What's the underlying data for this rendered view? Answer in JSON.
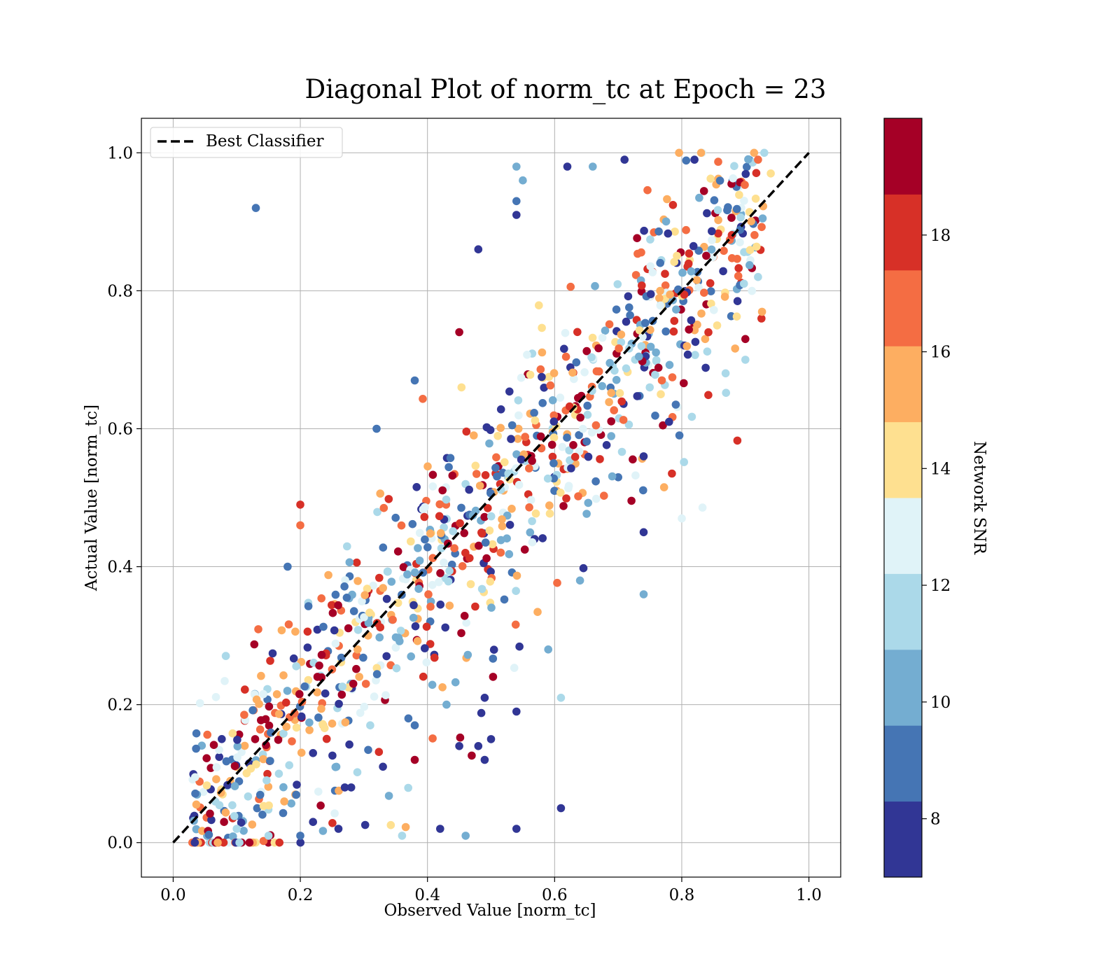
{
  "chart_data": {
    "type": "scatter",
    "title": "Diagonal Plot of norm_tc at Epoch = 23",
    "xlabel": "Observed Value [norm_tc]",
    "ylabel": "Actual Value [norm_tc]",
    "xlim": [
      -0.05,
      1.05
    ],
    "ylim": [
      -0.05,
      1.05
    ],
    "xticks": [
      0.0,
      0.2,
      0.4,
      0.6,
      0.8,
      1.0
    ],
    "yticks": [
      0.0,
      0.2,
      0.4,
      0.6,
      0.8,
      1.0
    ],
    "xtick_labels": [
      "0.0",
      "0.2",
      "0.4",
      "0.6",
      "0.8",
      "1.0"
    ],
    "ytick_labels": [
      "0.0",
      "0.2",
      "0.4",
      "0.6",
      "0.8",
      "1.0"
    ],
    "grid": true,
    "legend": {
      "placement": "upper-left",
      "entries": [
        "Best Classifier"
      ]
    },
    "diagonal": {
      "name": "Best Classifier",
      "x": [
        0,
        1
      ],
      "y": [
        0,
        1
      ],
      "style": "dashed",
      "color": "#000000"
    },
    "colorbar": {
      "label": "Network SNR",
      "range": [
        7,
        20
      ],
      "ticks": [
        8,
        10,
        12,
        14,
        16,
        18
      ],
      "tick_labels": [
        "8",
        "10",
        "12",
        "14",
        "16",
        "18"
      ],
      "colors": [
        "#313695",
        "#4575b4",
        "#74add1",
        "#abd9e9",
        "#e0f3f8",
        "#fee090",
        "#fdae61",
        "#f46d43",
        "#d73027",
        "#a50026"
      ]
    },
    "point_count_estimate": 1000,
    "points_snr_sample": [
      [
        0.13,
        0.92,
        8.5
      ],
      [
        0.48,
        0.86,
        8.0
      ],
      [
        0.54,
        0.98,
        10.5
      ],
      [
        0.55,
        0.96,
        10.5
      ],
      [
        0.54,
        0.93,
        9.0
      ],
      [
        0.54,
        0.91,
        8.0
      ],
      [
        0.62,
        0.98,
        8.0
      ],
      [
        0.66,
        0.98,
        10.0
      ],
      [
        0.71,
        0.99,
        8.0
      ],
      [
        0.45,
        0.74,
        19.5
      ],
      [
        0.38,
        0.67,
        9.0
      ],
      [
        0.32,
        0.6,
        9.0
      ],
      [
        0.18,
        0.4,
        9.0
      ],
      [
        0.2,
        0.49,
        18.5
      ],
      [
        0.2,
        0.46,
        16.5
      ],
      [
        0.61,
        0.05,
        8.0
      ],
      [
        0.46,
        0.01,
        10.0
      ],
      [
        0.54,
        0.02,
        8.0
      ],
      [
        0.42,
        0.02,
        8.0
      ],
      [
        0.36,
        0.01,
        11.0
      ],
      [
        0.12,
        0.0,
        19.5
      ],
      [
        0.07,
        0.0,
        15.5
      ],
      [
        0.74,
        0.36,
        10.0
      ],
      [
        0.74,
        0.45,
        8.0
      ],
      [
        0.74,
        0.56,
        8.0
      ],
      [
        0.78,
        0.61,
        8.0
      ],
      [
        0.8,
        0.47,
        12.5
      ],
      [
        0.9,
        0.7,
        11.0
      ],
      [
        0.92,
        0.82,
        11.0
      ],
      [
        0.94,
        0.97,
        14.0
      ],
      [
        0.92,
        0.99,
        16.5
      ],
      [
        0.82,
        0.99,
        8.0
      ],
      [
        0.9,
        0.73,
        19.5
      ],
      [
        0.64,
        0.38,
        10.0
      ],
      [
        0.61,
        0.21,
        11.0
      ],
      [
        0.59,
        0.28,
        10.0
      ],
      [
        0.54,
        0.19,
        8.0
      ],
      [
        0.5,
        0.15,
        8.0
      ],
      [
        0.49,
        0.21,
        8.0
      ],
      [
        0.49,
        0.12,
        8.0
      ],
      [
        0.48,
        0.14,
        8.0
      ],
      [
        0.45,
        0.14,
        8.0
      ],
      [
        0.43,
        0.2,
        10.0
      ],
      [
        0.38,
        0.12,
        19.5
      ],
      [
        0.38,
        0.17,
        9.0
      ],
      [
        0.37,
        0.18,
        9.0
      ],
      [
        0.33,
        0.11,
        8.0
      ],
      [
        0.31,
        0.17,
        11.0
      ],
      [
        0.28,
        0.08,
        8.0
      ],
      [
        0.27,
        0.08,
        8.0
      ],
      [
        0.26,
        0.02,
        8.0
      ],
      [
        0.22,
        0.03,
        8.0
      ],
      [
        0.2,
        0.01,
        9.0
      ],
      [
        0.15,
        0.01,
        11.0
      ],
      [
        0.1,
        0.02,
        12.0
      ],
      [
        0.08,
        0.03,
        19.5
      ]
    ]
  }
}
